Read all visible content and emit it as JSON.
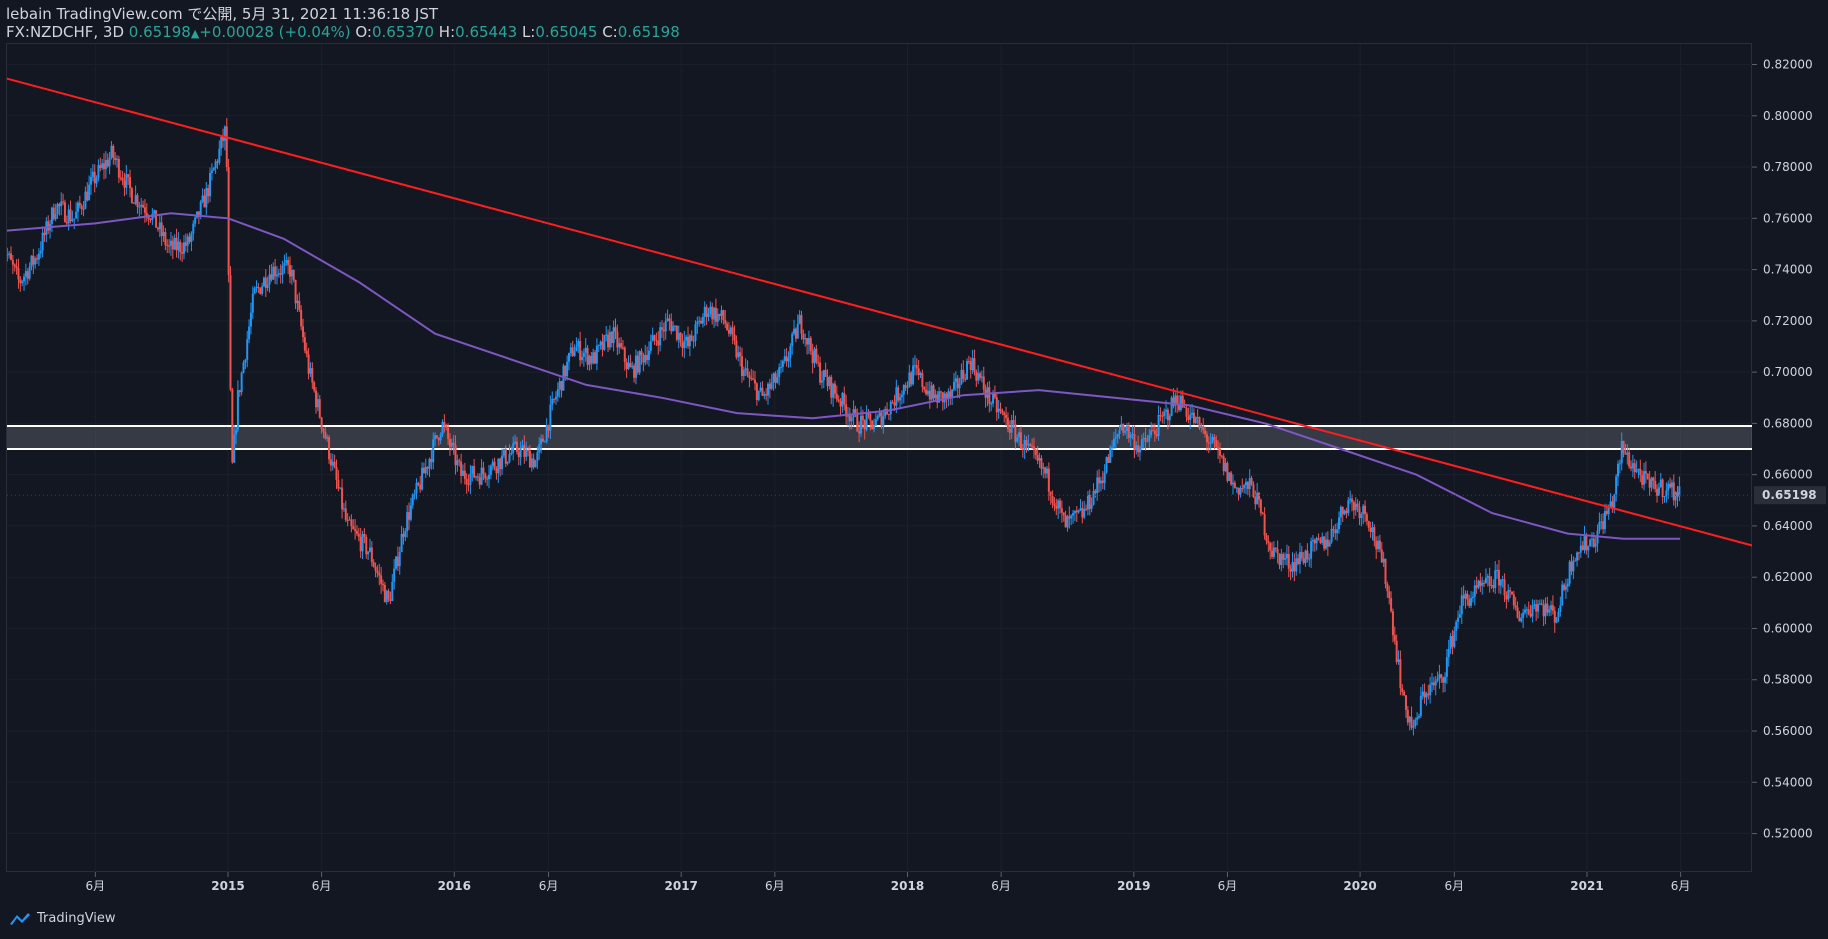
{
  "header": {
    "publish_line": "lebain TradingView.com で公開, 5月 31, 2021 11:36:18 JST",
    "symbol": "FX:NZDCHF, 3D",
    "last": "0.65198",
    "change": "+0.00028 (+0.04%)",
    "o_label": "O:",
    "o_val": "0.65370",
    "h_label": "H:",
    "h_val": "0.65443",
    "l_label": "L:",
    "l_val": "0.65045",
    "c_label": "C:",
    "c_val": "0.65198"
  },
  "colors": {
    "background": "#131722",
    "up_candle": "#2196f3",
    "down_candle": "#ef5350",
    "trendline": "#ff1e1e",
    "moving_average": "#7e57c2",
    "zone_line": "#ffffff",
    "price_badge_bg": "#2a2e39"
  },
  "chart_data": {
    "type": "candlestick",
    "symbol": "FX:NZDCHF",
    "timeframe": "3D",
    "ylim": [
      0.505,
      0.828
    ],
    "y_ticks": [
      "0.82000",
      "0.80000",
      "0.78000",
      "0.76000",
      "0.74000",
      "0.72000",
      "0.70000",
      "0.68000",
      "0.66000",
      "0.64000",
      "0.62000",
      "0.60000",
      "0.58000",
      "0.56000",
      "0.54000",
      "0.52000"
    ],
    "x_ticks": [
      "6月",
      "2015",
      "6月",
      "2016",
      "6月",
      "2017",
      "6月",
      "2018",
      "6月",
      "2019",
      "6月",
      "2020",
      "6月",
      "2021",
      "6月"
    ],
    "last_price_label": "0.65198",
    "price_path": [
      [
        "2014-01-01",
        0.752
      ],
      [
        "2014-02-01",
        0.735
      ],
      [
        "2014-03-01",
        0.745
      ],
      [
        "2014-04-01",
        0.765
      ],
      [
        "2014-05-01",
        0.76
      ],
      [
        "2014-06-01",
        0.775
      ],
      [
        "2014-07-01",
        0.785
      ],
      [
        "2014-08-01",
        0.77
      ],
      [
        "2014-09-01",
        0.762
      ],
      [
        "2014-10-01",
        0.748
      ],
      [
        "2014-11-01",
        0.75
      ],
      [
        "2014-12-01",
        0.77
      ],
      [
        "2015-01-01",
        0.795
      ],
      [
        "2015-01-10",
        0.66
      ],
      [
        "2015-01-20",
        0.69
      ],
      [
        "2015-02-15",
        0.73
      ],
      [
        "2015-03-15",
        0.74
      ],
      [
        "2015-04-15",
        0.74
      ],
      [
        "2015-05-15",
        0.7
      ],
      [
        "2015-06-15",
        0.67
      ],
      [
        "2015-07-15",
        0.64
      ],
      [
        "2015-08-20",
        0.63
      ],
      [
        "2015-09-20",
        0.61
      ],
      [
        "2015-10-15",
        0.64
      ],
      [
        "2015-11-15",
        0.66
      ],
      [
        "2015-12-15",
        0.68
      ],
      [
        "2016-01-15",
        0.66
      ],
      [
        "2016-02-15",
        0.66
      ],
      [
        "2016-03-15",
        0.665
      ],
      [
        "2016-04-15",
        0.67
      ],
      [
        "2016-05-15",
        0.665
      ],
      [
        "2016-06-15",
        0.69
      ],
      [
        "2016-07-15",
        0.71
      ],
      [
        "2016-08-15",
        0.705
      ],
      [
        "2016-09-15",
        0.715
      ],
      [
        "2016-10-15",
        0.7
      ],
      [
        "2016-11-15",
        0.71
      ],
      [
        "2016-12-15",
        0.72
      ],
      [
        "2017-01-15",
        0.71
      ],
      [
        "2017-02-15",
        0.725
      ],
      [
        "2017-03-15",
        0.72
      ],
      [
        "2017-04-15",
        0.7
      ],
      [
        "2017-05-15",
        0.69
      ],
      [
        "2017-06-15",
        0.7
      ],
      [
        "2017-07-15",
        0.72
      ],
      [
        "2017-08-15",
        0.7
      ],
      [
        "2017-09-15",
        0.69
      ],
      [
        "2017-10-15",
        0.68
      ],
      [
        "2017-11-15",
        0.68
      ],
      [
        "2017-12-15",
        0.69
      ],
      [
        "2018-01-15",
        0.7
      ],
      [
        "2018-02-15",
        0.69
      ],
      [
        "2018-03-15",
        0.69
      ],
      [
        "2018-04-15",
        0.705
      ],
      [
        "2018-05-15",
        0.69
      ],
      [
        "2018-06-15",
        0.68
      ],
      [
        "2018-07-15",
        0.67
      ],
      [
        "2018-08-15",
        0.66
      ],
      [
        "2018-09-15",
        0.64
      ],
      [
        "2018-10-15",
        0.645
      ],
      [
        "2018-11-15",
        0.66
      ],
      [
        "2018-12-15",
        0.68
      ],
      [
        "2019-01-15",
        0.67
      ],
      [
        "2019-02-15",
        0.68
      ],
      [
        "2019-03-15",
        0.69
      ],
      [
        "2019-04-15",
        0.68
      ],
      [
        "2019-05-15",
        0.67
      ],
      [
        "2019-06-15",
        0.655
      ],
      [
        "2019-07-15",
        0.655
      ],
      [
        "2019-08-15",
        0.63
      ],
      [
        "2019-09-15",
        0.625
      ],
      [
        "2019-10-15",
        0.63
      ],
      [
        "2019-11-15",
        0.635
      ],
      [
        "2019-12-15",
        0.65
      ],
      [
        "2020-01-15",
        0.645
      ],
      [
        "2020-02-15",
        0.62
      ],
      [
        "2020-03-15",
        0.57
      ],
      [
        "2020-04-01",
        0.56
      ],
      [
        "2020-04-15",
        0.575
      ],
      [
        "2020-05-15",
        0.58
      ],
      [
        "2020-06-15",
        0.61
      ],
      [
        "2020-07-15",
        0.615
      ],
      [
        "2020-08-15",
        0.62
      ],
      [
        "2020-09-15",
        0.605
      ],
      [
        "2020-10-15",
        0.61
      ],
      [
        "2020-11-15",
        0.605
      ],
      [
        "2020-12-15",
        0.63
      ],
      [
        "2021-01-15",
        0.635
      ],
      [
        "2021-02-15",
        0.65
      ],
      [
        "2021-03-01",
        0.67
      ],
      [
        "2021-03-15",
        0.665
      ],
      [
        "2021-04-15",
        0.655
      ],
      [
        "2021-05-15",
        0.655
      ],
      [
        "2021-05-31",
        0.65198
      ]
    ],
    "sma_path": [
      [
        "2014-01-01",
        0.755
      ],
      [
        "2014-06-01",
        0.758
      ],
      [
        "2014-10-01",
        0.762
      ],
      [
        "2015-01-01",
        0.76
      ],
      [
        "2015-04-01",
        0.752
      ],
      [
        "2015-08-01",
        0.735
      ],
      [
        "2015-12-01",
        0.715
      ],
      [
        "2016-04-01",
        0.705
      ],
      [
        "2016-08-01",
        0.695
      ],
      [
        "2016-12-01",
        0.69
      ],
      [
        "2017-04-01",
        0.684
      ],
      [
        "2017-08-01",
        0.682
      ],
      [
        "2017-12-01",
        0.685
      ],
      [
        "2018-04-01",
        0.691
      ],
      [
        "2018-08-01",
        0.693
      ],
      [
        "2018-12-01",
        0.69
      ],
      [
        "2019-04-01",
        0.687
      ],
      [
        "2019-08-01",
        0.68
      ],
      [
        "2019-12-01",
        0.67
      ],
      [
        "2020-04-01",
        0.66
      ],
      [
        "2020-08-01",
        0.645
      ],
      [
        "2020-12-01",
        0.637
      ],
      [
        "2021-03-01",
        0.635
      ],
      [
        "2021-05-31",
        0.635
      ]
    ],
    "trendline": [
      [
        "2013-10-01",
        0.821
      ],
      [
        "2022-02-01",
        0.624
      ]
    ],
    "zone": [
      0.67,
      0.679
    ]
  },
  "footer": {
    "brand": "TradingView"
  }
}
